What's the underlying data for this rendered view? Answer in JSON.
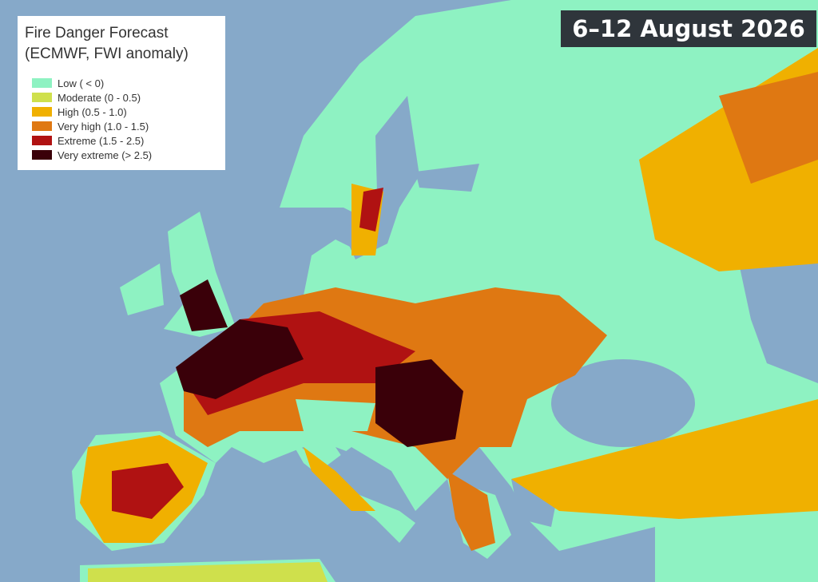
{
  "title": "Fire Danger Forecast",
  "subtitle": "(ECMWF, FWI anomaly)",
  "date_badge": "6–12 August 2026",
  "legend": {
    "items": [
      {
        "label": "Low ( < 0)",
        "color": "#8ef2c2"
      },
      {
        "label": "Moderate (0 - 0.5)",
        "color": "#cfe04c"
      },
      {
        "label": "High (0.5 - 1.0)",
        "color": "#f0b000"
      },
      {
        "label": "Very high (1.0 - 1.5)",
        "color": "#df7812"
      },
      {
        "label": "Extreme (1.5 - 2.5)",
        "color": "#b01212"
      },
      {
        "label": "Very extreme (> 2.5)",
        "color": "#3a0009"
      }
    ]
  }
}
